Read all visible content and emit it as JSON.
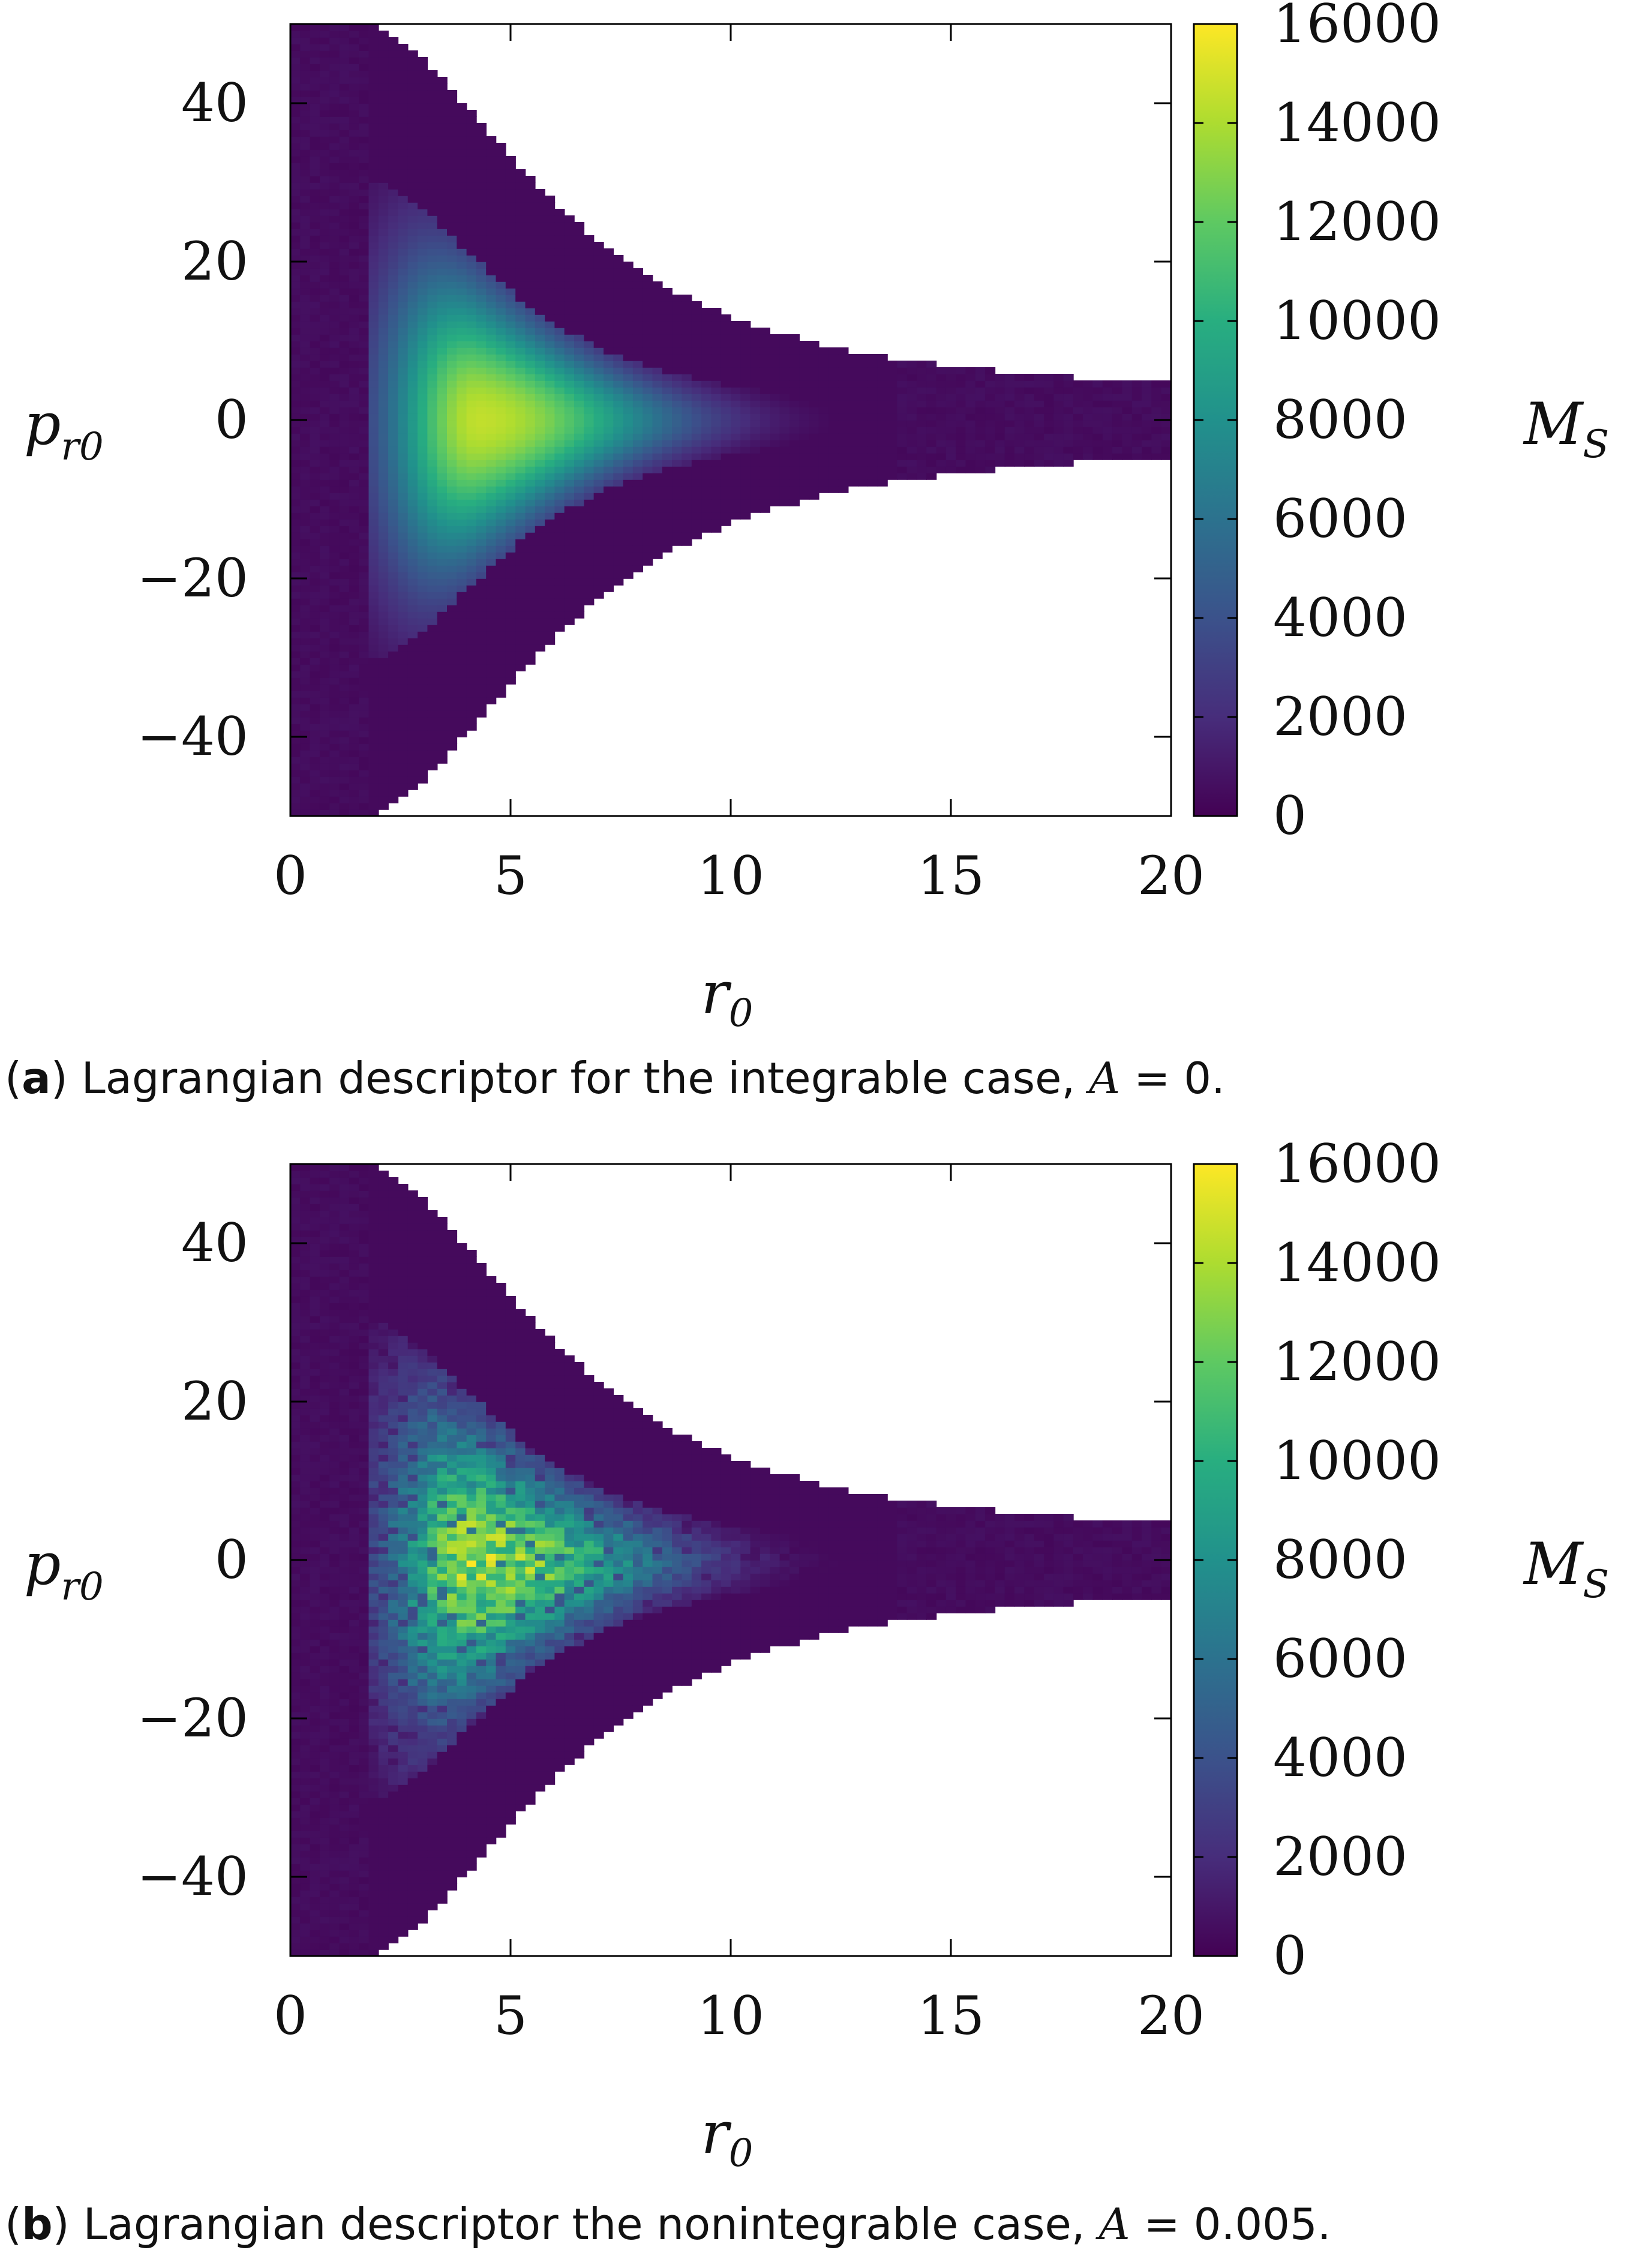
{
  "chart_data": [
    {
      "type": "heatmap",
      "panel": "a",
      "caption": {
        "label": "a",
        "text": "Lagrangian descriptor for the integrable case, ",
        "param": "A",
        "eq": " = 0."
      },
      "xlabel": "r",
      "xlabel_sub": "0",
      "ylabel": "p",
      "ylabel_sub": "r0",
      "xlim": [
        0,
        20
      ],
      "ylim": [
        -50,
        50
      ],
      "xticks": [
        0,
        5,
        10,
        15,
        20
      ],
      "yticks": [
        -40,
        -20,
        0,
        20,
        40
      ],
      "ytick_labels": [
        "−40",
        "−20",
        "0",
        "20",
        "40"
      ],
      "colorbar": {
        "label": "M",
        "label_sub": "S",
        "range": [
          0,
          16000
        ],
        "ticks": [
          0,
          2000,
          4000,
          6000,
          8000,
          10000,
          12000,
          14000,
          16000
        ],
        "colormap": [
          "#440154",
          "#472d7b",
          "#3b528b",
          "#2c728e",
          "#21918c",
          "#28ae80",
          "#5ec962",
          "#addc30",
          "#fde725"
        ]
      },
      "field": {
        "outer_boundary_momentum_at_r0": 50,
        "outer_boundary_width_param": 6,
        "core_center": [
          4.3,
          0
        ],
        "core_peak_value": 14500,
        "core_extent_r": [
          1.8,
          13
        ],
        "core_extent_p": [
          -30,
          30
        ],
        "structure": "smooth"
      }
    },
    {
      "type": "heatmap",
      "panel": "b",
      "caption": {
        "label": "b",
        "text": "Lagrangian descriptor the nonintegrable case, ",
        "param": "A",
        "eq": " = 0.005."
      },
      "xlabel": "r",
      "xlabel_sub": "0",
      "ylabel": "p",
      "ylabel_sub": "r0",
      "xlim": [
        0,
        20
      ],
      "ylim": [
        -50,
        50
      ],
      "xticks": [
        0,
        5,
        10,
        15,
        20
      ],
      "yticks": [
        -40,
        -20,
        0,
        20,
        40
      ],
      "ytick_labels": [
        "−40",
        "−20",
        "0",
        "20",
        "40"
      ],
      "colorbar": {
        "label": "M",
        "label_sub": "S",
        "range": [
          0,
          16000
        ],
        "ticks": [
          0,
          2000,
          4000,
          6000,
          8000,
          10000,
          12000,
          14000,
          16000
        ],
        "colormap": [
          "#440154",
          "#472d7b",
          "#3b528b",
          "#2c728e",
          "#21918c",
          "#28ae80",
          "#5ec962",
          "#addc30",
          "#fde725"
        ]
      },
      "field": {
        "outer_boundary_momentum_at_r0": 50,
        "outer_boundary_width_param": 6,
        "core_center": [
          4.3,
          0
        ],
        "core_peak_value": 14000,
        "core_extent_r": [
          1.8,
          13
        ],
        "core_extent_p": [
          -32,
          32
        ],
        "structure": "chaotic-filaments"
      }
    }
  ]
}
